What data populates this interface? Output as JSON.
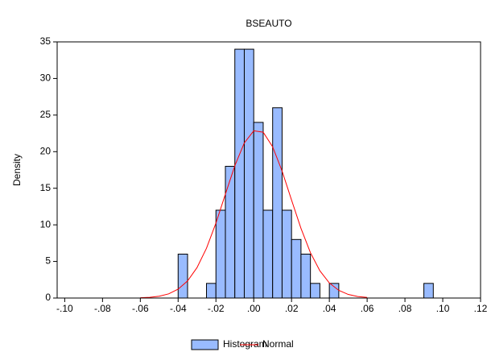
{
  "chart_data": {
    "type": "histogram",
    "title": "BSEAUTO",
    "y_label": "Density",
    "bins": [
      -0.04,
      -0.035,
      -0.03,
      -0.025,
      -0.02,
      -0.015,
      -0.01,
      -0.005,
      0,
      0.005,
      0.01,
      0.015,
      0.02,
      0.025,
      0.03,
      0.035,
      0.04,
      0.045,
      0.05,
      0.055,
      0.06,
      0.065,
      0.07,
      0.075,
      0.08,
      0.085,
      0.09,
      0.095
    ],
    "values": [
      6,
      0,
      0,
      2,
      12,
      18,
      34,
      34,
      24,
      12,
      26,
      12,
      8,
      6,
      2,
      0,
      2,
      0,
      0,
      0,
      0,
      0,
      0,
      0,
      0,
      0,
      2
    ],
    "name": "Histogram",
    "color": "#99bbff",
    "curve": {
      "name": "Normal",
      "color": "#ff0000",
      "x": [
        -0.06,
        -0.055,
        -0.05,
        -0.045,
        -0.04,
        -0.035,
        -0.03,
        -0.025,
        -0.02,
        -0.015,
        -0.01,
        -0.005,
        0,
        0.005,
        0.01,
        0.015,
        0.02,
        0.025,
        0.03,
        0.035,
        0.04,
        0.045,
        0.05,
        0.055,
        0.06
      ],
      "values": [
        0.04,
        0.1,
        0.25,
        0.57,
        1.21,
        2.34,
        4.16,
        6.8,
        10.24,
        14.19,
        18.08,
        21.19,
        22.85,
        22.66,
        20.67,
        17.35,
        13.39,
        9.51,
        6.2,
        3.72,
        2.06,
        1.05,
        0.49,
        0.21,
        0.08
      ]
    },
    "xlim": [
      -0.104,
      0.12
    ],
    "xticks": [
      {
        "value": -0.1,
        "label": "-.10"
      },
      {
        "value": -0.08,
        "label": "-.08"
      },
      {
        "value": -0.06,
        "label": "-.06"
      },
      {
        "value": -0.04,
        "label": "-.04"
      },
      {
        "value": -0.02,
        "label": "-.02"
      },
      {
        "value": 0,
        "label": ".00"
      },
      {
        "value": 0.02,
        "label": ".02"
      },
      {
        "value": 0.04,
        "label": ".04"
      },
      {
        "value": 0.06,
        "label": ".06"
      },
      {
        "value": 0.08,
        "label": ".08"
      },
      {
        "value": 0.1,
        "label": ".10"
      },
      {
        "value": 0.12,
        "label": ".12"
      }
    ],
    "ylim": [
      0,
      35
    ],
    "yticks": [
      0,
      5,
      10,
      15,
      20,
      25,
      30,
      35
    ],
    "legend": "bottom"
  }
}
